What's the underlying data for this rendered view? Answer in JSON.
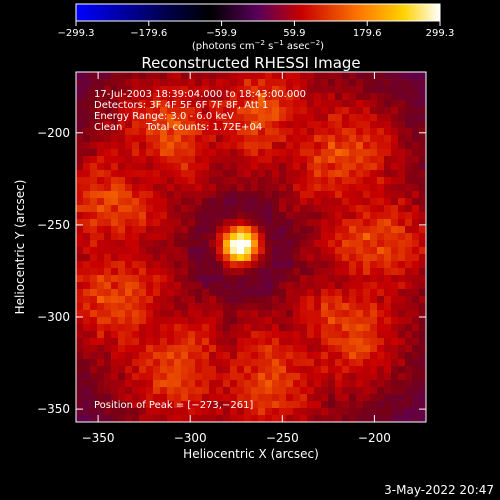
{
  "chart_data": {
    "type": "heatmap",
    "title": "Reconstructed RHESSI Image",
    "xlabel": "Heliocentric X (arcsec)",
    "ylabel": "Heliocentric Y (arcsec)",
    "xlim": [
      -362,
      -172
    ],
    "ylim": [
      -357,
      -167
    ],
    "x_ticks": [
      {
        "value": -350,
        "label": "−350"
      },
      {
        "value": -300,
        "label": "−300"
      },
      {
        "value": -250,
        "label": "−250"
      },
      {
        "value": -200,
        "label": "−200"
      }
    ],
    "y_ticks": [
      {
        "value": -350,
        "label": "−350"
      },
      {
        "value": -300,
        "label": "−300"
      },
      {
        "value": -250,
        "label": "−250"
      },
      {
        "value": -200,
        "label": "−200"
      }
    ],
    "colorbar": {
      "min": -299.3,
      "max": 299.3,
      "ticks": [
        {
          "value": -299.3,
          "label": "−299.3"
        },
        {
          "value": -179.6,
          "label": "−179.6"
        },
        {
          "value": -59.9,
          "label": "−59.9"
        },
        {
          "value": 59.9,
          "label": "59.9"
        },
        {
          "value": 179.6,
          "label": "179.6"
        },
        {
          "value": 299.3,
          "label": "299.3"
        }
      ],
      "unit_main": "(photons cm",
      "unit_sup1": "−2",
      "unit_mid": " s",
      "unit_sup2": "−1",
      "unit_end": " asec",
      "unit_sup3": "−2",
      "unit_close": ")"
    },
    "annotations": {
      "time_range": "17-Jul-2003 18:39:04.000 to 18:43:00.000",
      "detectors": "Detectors: 3F 4F 5F 6F 7F 8F, Att 1",
      "energy_range": "Energy Range: 3.0 - 6.0 keV",
      "method": "Clean",
      "total_counts": "Total counts: 1.72E+04",
      "peak_position": "Position of Peak = [−273,−261]"
    },
    "peak": {
      "x": -273,
      "y": -261,
      "value": 299.3
    },
    "ring": {
      "center_x": -272,
      "center_y": -262,
      "radius": 75,
      "value": 110
    },
    "colors": {
      "scale": [
        "#0000ff",
        "#00004a",
        "#000000",
        "#6a006a",
        "#c80000",
        "#ff7800",
        "#ffd200",
        "#ffffff"
      ]
    }
  },
  "footer": {
    "timestamp": "3-May-2022 20:47"
  }
}
